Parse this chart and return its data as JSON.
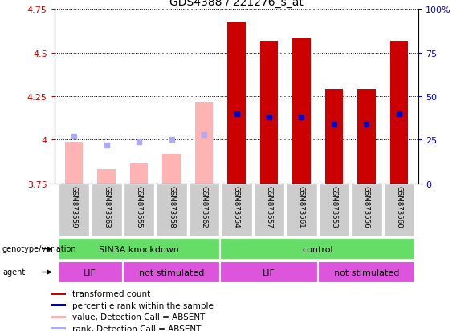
{
  "title": "GDS4388 / 221276_s_at",
  "samples": [
    "GSM873559",
    "GSM873563",
    "GSM873555",
    "GSM873558",
    "GSM873562",
    "GSM873554",
    "GSM873557",
    "GSM873561",
    "GSM873553",
    "GSM873556",
    "GSM873560"
  ],
  "transformed_count": [
    3.99,
    3.83,
    3.87,
    3.92,
    4.22,
    4.68,
    4.57,
    4.58,
    4.29,
    4.29,
    4.57
  ],
  "percentile_rank": [
    27,
    22,
    24,
    25,
    28,
    40,
    38,
    38,
    34,
    34,
    40
  ],
  "detection_call_absent": [
    true,
    true,
    true,
    true,
    true,
    false,
    false,
    false,
    false,
    false,
    false
  ],
  "ylim_left": [
    3.75,
    4.75
  ],
  "ylim_right": [
    0,
    100
  ],
  "yticks_left": [
    3.75,
    4.0,
    4.25,
    4.5,
    4.75
  ],
  "yticks_right": [
    0,
    25,
    50,
    75,
    100
  ],
  "ytick_labels_left": [
    "3.75",
    "4",
    "4.25",
    "4.5",
    "4.75"
  ],
  "ytick_labels_right": [
    "0",
    "25",
    "50",
    "75",
    "100%"
  ],
  "bar_bottom": 3.75,
  "color_red": "#cc0000",
  "color_pink": "#ffb3b3",
  "color_blue": "#0000cc",
  "color_lightblue": "#aaaaff",
  "color_green": "#66dd66",
  "color_magenta": "#dd55dd",
  "color_grey": "#cccccc",
  "genotype_groups": [
    {
      "label": "SIN3A knockdown",
      "start": 0,
      "end": 5
    },
    {
      "label": "control",
      "start": 5,
      "end": 11
    }
  ],
  "agent_groups": [
    {
      "label": "LIF",
      "start": 0,
      "end": 2
    },
    {
      "label": "not stimulated",
      "start": 2,
      "end": 5
    },
    {
      "label": "LIF",
      "start": 5,
      "end": 8
    },
    {
      "label": "not stimulated",
      "start": 8,
      "end": 11
    }
  ],
  "legend_items": [
    {
      "label": "transformed count",
      "color": "#cc0000"
    },
    {
      "label": "percentile rank within the sample",
      "color": "#0000cc"
    },
    {
      "label": "value, Detection Call = ABSENT",
      "color": "#ffb3b3"
    },
    {
      "label": "rank, Detection Call = ABSENT",
      "color": "#aaaaff"
    }
  ]
}
